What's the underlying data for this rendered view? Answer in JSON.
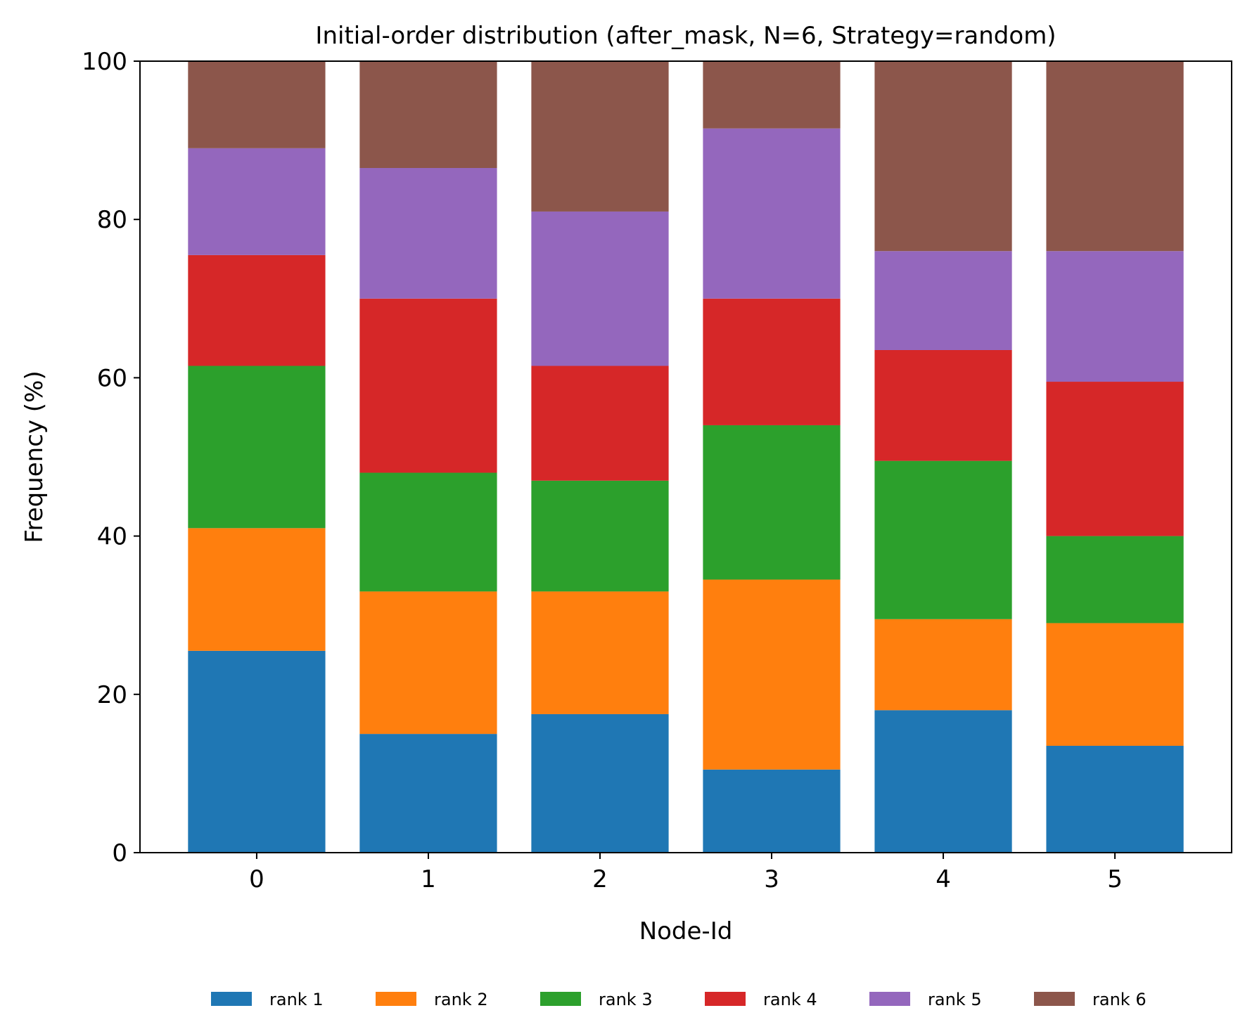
{
  "chart_data": {
    "type": "bar",
    "stacked": true,
    "title": "Initial-order distribution (after_mask, N=6, Strategy=random)",
    "xlabel": "Node-Id",
    "ylabel": "Frequency (%)",
    "ylim": [
      0,
      100
    ],
    "yticks": [
      "0",
      "20",
      "40",
      "60",
      "80",
      "100"
    ],
    "categories": [
      "0",
      "1",
      "2",
      "3",
      "4",
      "5"
    ],
    "grid": false,
    "legend_position": "bottom-center",
    "series": [
      {
        "name": "rank 1",
        "color": "#1f77b4",
        "values": [
          25.5,
          15.0,
          17.5,
          10.5,
          18.0,
          13.5
        ]
      },
      {
        "name": "rank 2",
        "color": "#ff7f0e",
        "values": [
          15.5,
          18.0,
          15.5,
          24.0,
          11.5,
          15.5
        ]
      },
      {
        "name": "rank 3",
        "color": "#2ca02c",
        "values": [
          20.5,
          15.0,
          14.0,
          19.5,
          20.0,
          11.0
        ]
      },
      {
        "name": "rank 4",
        "color": "#d62728",
        "values": [
          14.0,
          22.0,
          14.5,
          16.0,
          14.0,
          19.5
        ]
      },
      {
        "name": "rank 5",
        "color": "#9467bd",
        "values": [
          13.5,
          16.5,
          19.5,
          21.5,
          12.5,
          16.5
        ]
      },
      {
        "name": "rank 6",
        "color": "#8c564b",
        "values": [
          11.0,
          13.5,
          19.0,
          8.5,
          24.0,
          24.0
        ]
      }
    ]
  }
}
